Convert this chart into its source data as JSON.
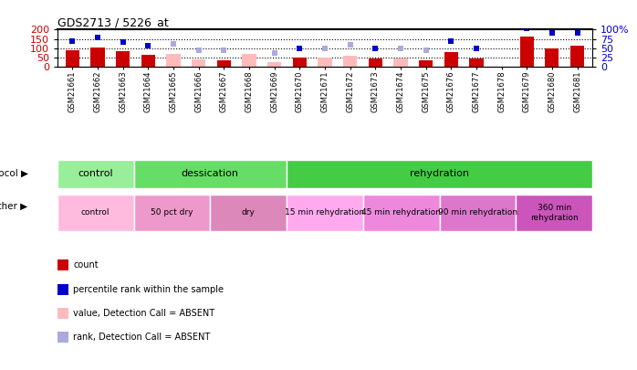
{
  "title": "GDS2713 / 5226_at",
  "samples": [
    "GSM21661",
    "GSM21662",
    "GSM21663",
    "GSM21664",
    "GSM21665",
    "GSM21666",
    "GSM21667",
    "GSM21668",
    "GSM21669",
    "GSM21670",
    "GSM21671",
    "GSM21672",
    "GSM21673",
    "GSM21674",
    "GSM21675",
    "GSM21676",
    "GSM21677",
    "GSM21678",
    "GSM21679",
    "GSM21680",
    "GSM21681"
  ],
  "count_values": [
    88,
    103,
    83,
    62,
    null,
    null,
    32,
    null,
    null,
    47,
    null,
    null,
    43,
    null,
    33,
    77,
    43,
    null,
    162,
    100,
    115
  ],
  "count_absent": [
    null,
    null,
    null,
    null,
    70,
    40,
    null,
    70,
    25,
    null,
    47,
    57,
    null,
    45,
    null,
    null,
    null,
    null,
    null,
    null,
    null
  ],
  "rank_values": [
    68,
    79,
    67,
    57,
    null,
    null,
    null,
    null,
    null,
    50,
    null,
    null,
    50,
    null,
    null,
    70,
    50,
    null,
    103,
    90,
    90
  ],
  "rank_absent": [
    null,
    null,
    null,
    null,
    62,
    45,
    43,
    null,
    38,
    null,
    50,
    58,
    null,
    50,
    45,
    null,
    null,
    null,
    null,
    null,
    null
  ],
  "count_color": "#cc0000",
  "count_absent_color": "#ffbbbb",
  "rank_color": "#0000cc",
  "rank_absent_color": "#aaaadd",
  "left_ylim": [
    0,
    200
  ],
  "right_ylim": [
    0,
    100
  ],
  "left_yticks": [
    0,
    50,
    100,
    150,
    200
  ],
  "right_yticks": [
    0,
    25,
    50,
    75,
    100
  ],
  "right_yticklabels": [
    "0",
    "25",
    "50",
    "75",
    "100%"
  ],
  "protocol_groups": [
    {
      "label": "control",
      "start": 0,
      "end": 3,
      "color": "#99ee99"
    },
    {
      "label": "dessication",
      "start": 3,
      "end": 9,
      "color": "#66dd66"
    },
    {
      "label": "rehydration",
      "start": 9,
      "end": 21,
      "color": "#44cc44"
    }
  ],
  "other_groups": [
    {
      "label": "control",
      "start": 0,
      "end": 3,
      "color": "#ffbbdd"
    },
    {
      "label": "50 pct dry",
      "start": 3,
      "end": 6,
      "color": "#ee99cc"
    },
    {
      "label": "dry",
      "start": 6,
      "end": 9,
      "color": "#dd88bb"
    },
    {
      "label": "15 min rehydration",
      "start": 9,
      "end": 12,
      "color": "#ffaaee"
    },
    {
      "label": "45 min rehydration",
      "start": 12,
      "end": 15,
      "color": "#ee88dd"
    },
    {
      "label": "90 min rehydration",
      "start": 15,
      "end": 18,
      "color": "#dd77cc"
    },
    {
      "label": "360 min\nrehydration",
      "start": 18,
      "end": 21,
      "color": "#cc55bb"
    }
  ]
}
